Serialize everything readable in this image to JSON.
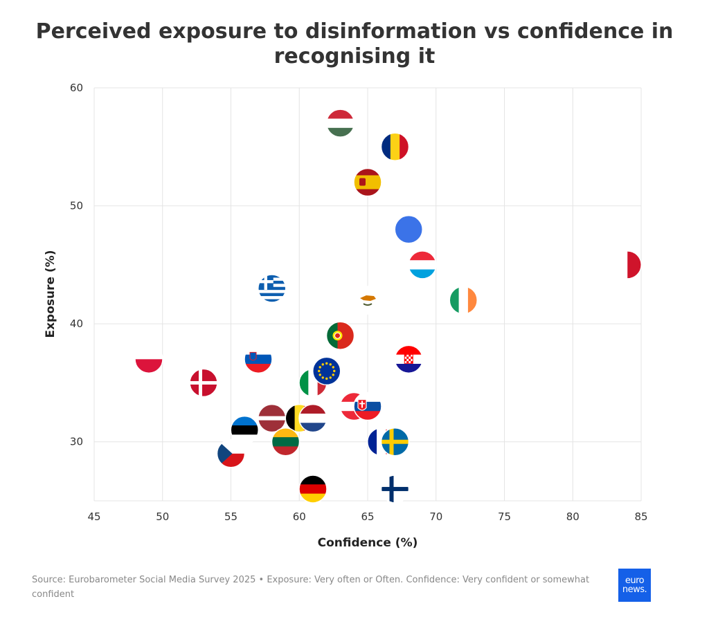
{
  "title": "Perceived exposure to disinformation vs confidence in recognising it",
  "source": "Source: Eurobarometer Social Media Survey 2025 • Exposure: Very often or Often. Confidence: Very confident or somewhat confident",
  "logo": {
    "line1": "euro",
    "line2": "news."
  },
  "chart_data": {
    "type": "scatter",
    "xlabel": "Confidence (%)",
    "ylabel": "Exposure (%)",
    "xlim": [
      45,
      85
    ],
    "ylim": [
      25,
      60
    ],
    "xticks": [
      45,
      50,
      55,
      60,
      65,
      70,
      75,
      80,
      85
    ],
    "yticks": [
      30,
      40,
      50,
      60
    ],
    "grid": true,
    "marker": "country flag",
    "points": [
      {
        "flag": "hungary",
        "x": 63,
        "y": 57
      },
      {
        "flag": "romania",
        "x": 67,
        "y": 55
      },
      {
        "flag": "spain",
        "x": 65,
        "y": 52
      },
      {
        "flag": "plain-blue",
        "x": 68,
        "y": 48
      },
      {
        "flag": "luxembourg",
        "x": 69,
        "y": 45
      },
      {
        "flag": "malta",
        "x": 84,
        "y": 45
      },
      {
        "flag": "greece",
        "x": 58,
        "y": 43
      },
      {
        "flag": "cyprus",
        "x": 65,
        "y": 42
      },
      {
        "flag": "ireland",
        "x": 72,
        "y": 42
      },
      {
        "flag": "portugal",
        "x": 63,
        "y": 39
      },
      {
        "flag": "poland",
        "x": 49,
        "y": 37
      },
      {
        "flag": "slovenia",
        "x": 57,
        "y": 37
      },
      {
        "flag": "croatia",
        "x": 68,
        "y": 37
      },
      {
        "flag": "denmark",
        "x": 53,
        "y": 35
      },
      {
        "flag": "italy",
        "x": 61,
        "y": 35
      },
      {
        "flag": "eu",
        "x": 62,
        "y": 36
      },
      {
        "flag": "austria",
        "x": 64,
        "y": 33
      },
      {
        "flag": "slovakia",
        "x": 65,
        "y": 33
      },
      {
        "flag": "latvia",
        "x": 58,
        "y": 32
      },
      {
        "flag": "belgium",
        "x": 60,
        "y": 32
      },
      {
        "flag": "netherlands",
        "x": 61,
        "y": 32
      },
      {
        "flag": "estonia",
        "x": 56,
        "y": 31
      },
      {
        "flag": "lithuania",
        "x": 59,
        "y": 30
      },
      {
        "flag": "france",
        "x": 66,
        "y": 30
      },
      {
        "flag": "sweden",
        "x": 67,
        "y": 30
      },
      {
        "flag": "czechia",
        "x": 55,
        "y": 29
      },
      {
        "flag": "germany",
        "x": 61,
        "y": 26
      },
      {
        "flag": "finland",
        "x": 67,
        "y": 26
      }
    ]
  }
}
